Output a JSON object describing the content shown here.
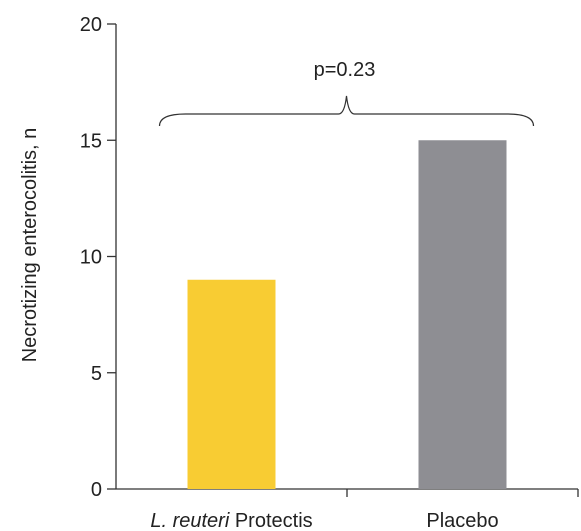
{
  "chart_data": {
    "type": "bar",
    "categories": [
      {
        "italic": "L. reuteri",
        "rest": " Protectis"
      },
      {
        "italic": "",
        "rest": "Placebo"
      }
    ],
    "values": [
      9,
      15
    ],
    "colors": [
      "#f8cc33",
      "#8e8e93"
    ],
    "ylabel": "Necrotizing enterocolitis, n",
    "ylim": [
      0,
      20
    ],
    "yticks": [
      0,
      5,
      10,
      15,
      20
    ],
    "grid": false,
    "annotation": {
      "text": "p=0.23",
      "between": [
        0,
        1
      ]
    }
  }
}
